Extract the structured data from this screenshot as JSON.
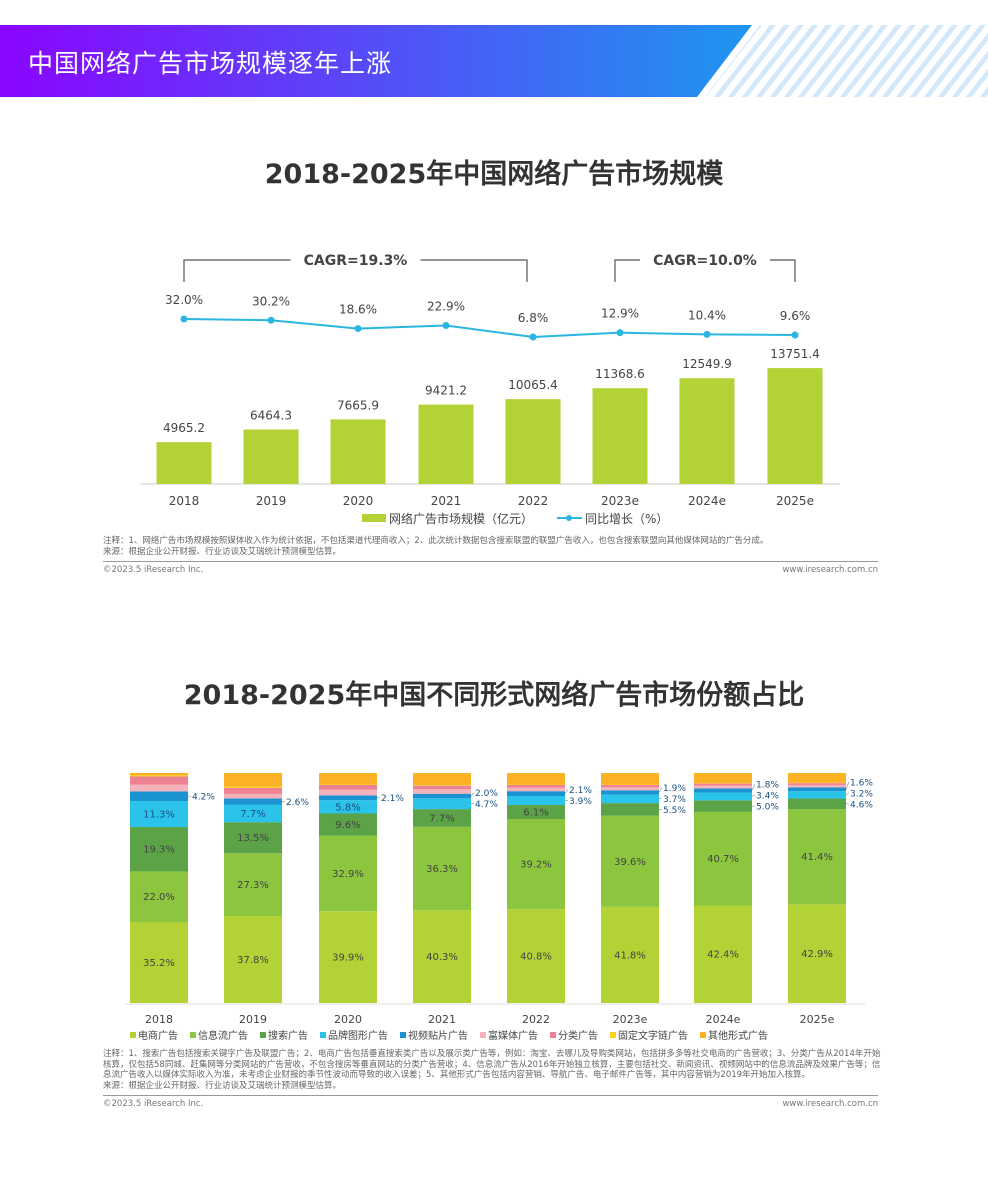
{
  "header": {
    "title": "中国网络广告市场规模逐年上涨",
    "gradient": [
      "#8a05ff",
      "#1e96f0"
    ]
  },
  "chart_data": [
    {
      "type": "bar+line",
      "title": "2018-2025年中国网络广告市场规模",
      "categories": [
        "2018",
        "2019",
        "2020",
        "2021",
        "2022",
        "2023e",
        "2024e",
        "2025e"
      ],
      "series": [
        {
          "name": "网络广告市场规模（亿元）",
          "type": "bar",
          "color": "#b2d235",
          "values": [
            4965.2,
            6464.3,
            7665.9,
            9421.2,
            10065.4,
            11368.6,
            12549.9,
            13751.4
          ]
        },
        {
          "name": "同比增长（%）",
          "type": "line",
          "color": "#2bb5e0",
          "values": [
            32.0,
            30.2,
            18.6,
            22.9,
            6.8,
            12.9,
            10.4,
            9.6
          ]
        }
      ],
      "value_labels": [
        "4965.2",
        "6464.3",
        "7665.9",
        "9421.2",
        "10065.4",
        "11368.6",
        "12549.9",
        "13751.4"
      ],
      "growth_labels": [
        "32.0%",
        "30.2%",
        "18.6%",
        "22.9%",
        "6.8%",
        "12.9%",
        "10.4%",
        "9.6%"
      ],
      "annotations": [
        {
          "text": "CAGR=19.3%",
          "from": "2018",
          "to": "2022"
        },
        {
          "text": "CAGR=10.0%",
          "from": "2023e",
          "to": "2025e"
        }
      ],
      "legend_position": "bottom",
      "grid": false,
      "note": "注释：1、网络广告市场规模按照媒体收入作为统计依据，不包括渠道代理商收入；2、此次统计数据包含搜索联盟的联盟广告收入，也包含搜索联盟向其他媒体网站的广告分成。",
      "source": "来源：根据企业公开财报、行业访谈及艾瑞统计预测模型估算。",
      "copyright": "©2023.5 iResearch Inc.",
      "website": "www.iresearch.com.cn"
    },
    {
      "type": "stacked-bar",
      "title": "2018-2025年中国不同形式网络广告市场份额占比",
      "categories": [
        "2018",
        "2019",
        "2020",
        "2021",
        "2022",
        "2023e",
        "2024e",
        "2025e"
      ],
      "unit": "%",
      "series": [
        {
          "name": "电商广告",
          "color": "#b2d235",
          "values": [
            35.2,
            37.8,
            39.9,
            40.3,
            40.8,
            41.8,
            42.4,
            42.9
          ],
          "labeled": true
        },
        {
          "name": "信息流广告",
          "color": "#8cc63f",
          "values": [
            22.0,
            27.3,
            32.9,
            36.3,
            39.2,
            39.6,
            40.7,
            41.4
          ],
          "labeled": true
        },
        {
          "name": "搜索广告",
          "color": "#5ba346",
          "values": [
            19.3,
            13.5,
            9.6,
            7.7,
            6.1,
            5.5,
            5.0,
            4.6
          ],
          "labeled": true
        },
        {
          "name": "品牌图形广告",
          "color": "#2cc3ea",
          "values": [
            11.3,
            7.7,
            5.8,
            4.7,
            3.9,
            3.7,
            3.4,
            3.2
          ],
          "labeled": true
        },
        {
          "name": "视频贴片广告",
          "color": "#1b93d2",
          "values": [
            4.2,
            2.6,
            2.1,
            2.0,
            2.1,
            1.9,
            1.8,
            1.6
          ],
          "labeled": true
        },
        {
          "name": "富媒体广告",
          "color": "#f5b2ba",
          "values": [
            3.0,
            2.0,
            2.5,
            2.0,
            1.5,
            1.3,
            1.2,
            1.1
          ],
          "labeled": false
        },
        {
          "name": "分类广告",
          "color": "#ee8193",
          "values": [
            3.5,
            2.6,
            2.0,
            1.5,
            1.2,
            1.0,
            0.9,
            0.8
          ],
          "labeled": false
        },
        {
          "name": "固定文字链广告",
          "color": "#fdd019",
          "values": [
            0.5,
            0.5,
            0.2,
            0.2,
            0.2,
            0.2,
            0.1,
            0.1
          ],
          "labeled": false
        },
        {
          "name": "其他形式广告",
          "color": "#fbb224",
          "values": [
            1.0,
            6.0,
            5.0,
            5.3,
            5.0,
            5.0,
            4.5,
            4.3
          ],
          "labeled": false
        }
      ],
      "legend_position": "bottom",
      "grid": false,
      "note": "注释：1、搜索广告包括搜索关键字广告及联盟广告；2、电商广告包括垂直搜索类广告以及展示类广告等，例如：淘宝、去哪儿及导购类网站，包括拼多多等社交电商的广告营收；3、分类广告从2014年开始核算，仅包括58同城、赶集网等分类网站的广告营收，不包含搜房等垂直网站的分类广告营收；4、信息流广告从2016年开始独立核算，主要包括社交、新闻资讯、视频网站中的信息流品牌及效果广告等；信息流广告收入以媒体实际收入为准，未考虑企业财报的季节性波动而导致的收入误差；5、其他形式广告包括内容营销、导航广告、电子邮件广告等，其中内容营销为2019年开始加入核算。",
      "source": "来源：根据企业公开财报、行业访谈及艾瑞统计预测模型估算。",
      "copyright": "©2023.5 iResearch Inc.",
      "website": "www.iresearch.com.cn"
    }
  ]
}
